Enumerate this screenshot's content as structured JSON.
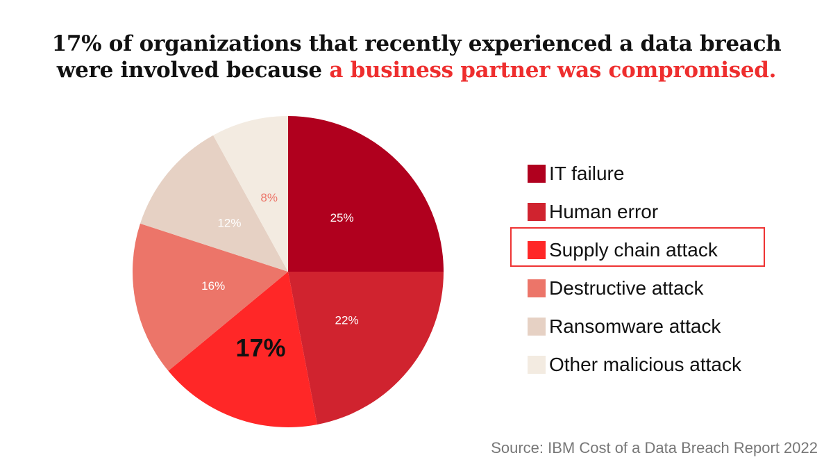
{
  "title": {
    "line1": "17% of organizations that recently experienced a data breach",
    "line2_prefix": "were involved because ",
    "line2_highlight": "a business partner was compromised."
  },
  "chart_data": {
    "type": "pie",
    "start": "top",
    "direction": "clockwise",
    "legend_position": "right",
    "highlighted": "Supply chain attack",
    "slices": [
      {
        "label": "IT failure",
        "value": 25,
        "data_label": "25%",
        "color": "#b0001e"
      },
      {
        "label": "Human error",
        "value": 22,
        "data_label": "22%",
        "color": "#d0232f"
      },
      {
        "label": "Supply chain attack",
        "value": 17,
        "data_label": "17%",
        "color": "#ff2727"
      },
      {
        "label": "Destructive attack",
        "value": 16,
        "data_label": "16%",
        "color": "#ec7569"
      },
      {
        "label": "Ransomware attack",
        "value": 12,
        "data_label": "12%",
        "color": "#e6d1c4"
      },
      {
        "label": "Other malicious attack",
        "value": 8,
        "data_label": "8%",
        "color": "#f3ebe1"
      }
    ]
  },
  "source": "Source: IBM Cost of a Data Breach Report 2022"
}
